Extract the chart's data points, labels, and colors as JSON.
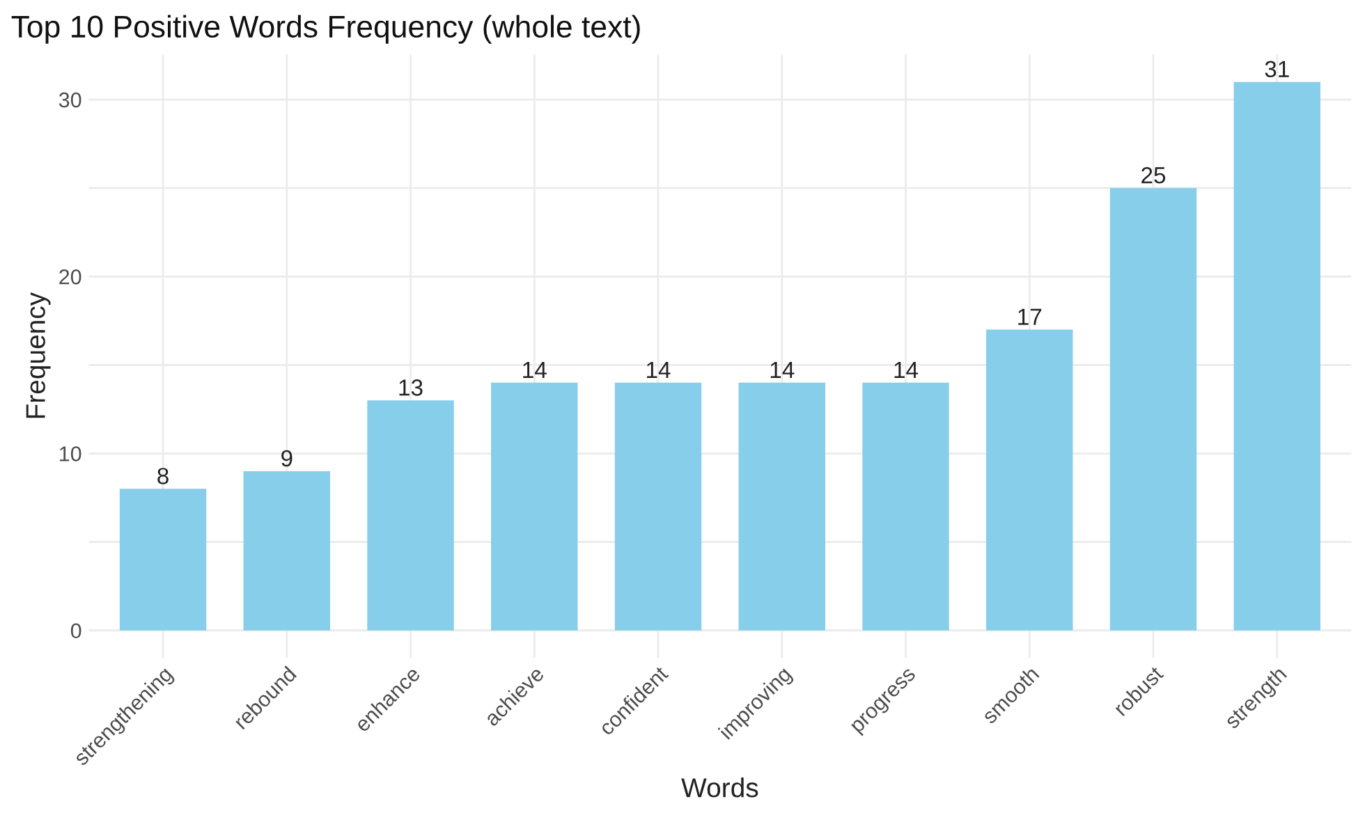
{
  "chart_data": {
    "type": "bar",
    "title": "Top 10 Positive Words Frequency (whole text)",
    "xlabel": "Words",
    "ylabel": "Frequency",
    "categories": [
      "strengthening",
      "rebound",
      "enhance",
      "achieve",
      "confident",
      "improving",
      "progress",
      "smooth",
      "robust",
      "strength"
    ],
    "values": [
      8,
      9,
      13,
      14,
      14,
      14,
      14,
      17,
      25,
      31
    ],
    "color": "#87ceeb",
    "ylim": [
      -1.55,
      32.55
    ],
    "yticks": [
      0,
      {
        "value": 5,
        "label": null
      },
      10,
      {
        "value": 15,
        "label": null
      },
      20,
      {
        "value": 25,
        "label": null
      },
      30
    ],
    "grid": true,
    "data_labels": true
  }
}
